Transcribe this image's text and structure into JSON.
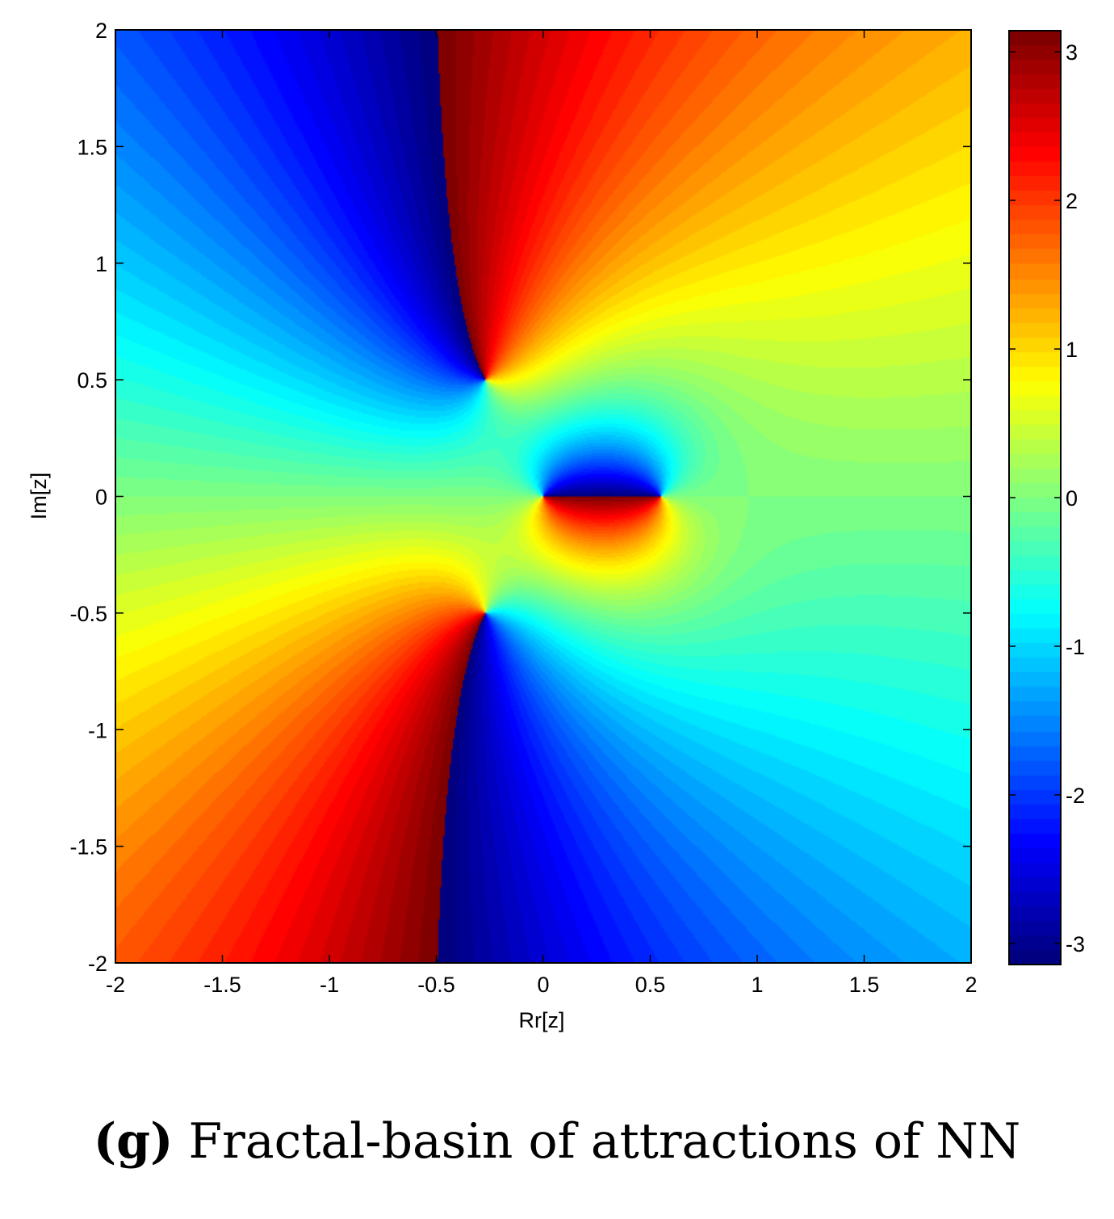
{
  "caption": {
    "label": "(g)",
    "text": "Fractal-basin of attractions of NN"
  },
  "chart_data": {
    "type": "heatmap",
    "title": "",
    "xlabel": "Rr[z]",
    "ylabel": "Im[z]",
    "xlim": [
      -2,
      2
    ],
    "ylim": [
      -2,
      2
    ],
    "x_ticks": [
      "-2",
      "-1.5",
      "-1",
      "-0.5",
      "0",
      "0.5",
      "1",
      "1.5",
      "2"
    ],
    "y_ticks": [
      "2",
      "1.5",
      "1",
      "0.5",
      "0",
      "-0.5",
      "-1",
      "-1.5",
      "-2"
    ],
    "colorbar": {
      "range": [
        -3.14159,
        3.14159
      ],
      "ticks": [
        "3",
        "2",
        "1",
        "0",
        "-1",
        "-2",
        "-3"
      ],
      "colormap": "jet"
    },
    "grid": false,
    "description_of_field": "phase angle of complex function",
    "zeros": [
      [
        0,
        0
      ],
      [
        -0.27,
        0.5
      ],
      [
        -0.27,
        -0.5
      ]
    ],
    "poles": [
      [
        0.55,
        0
      ]
    ]
  }
}
